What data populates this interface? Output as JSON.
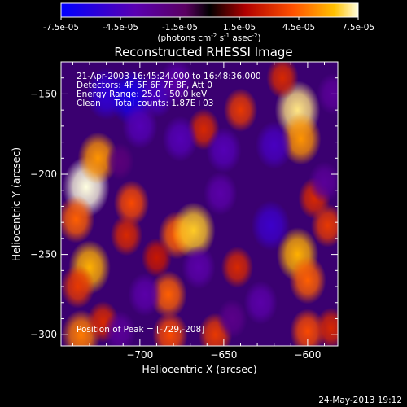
{
  "chart_data": {
    "type": "heatmap",
    "title": "Reconstructed RHESSI Image",
    "xlabel": "Heliocentric X (arcsec)",
    "ylabel": "Heliocentric Y (arcsec)",
    "xlim": [
      -747,
      -582
    ],
    "ylim": [
      -307,
      -130
    ],
    "x_ticks": [
      -700,
      -650,
      -600
    ],
    "y_ticks": [
      -150,
      -200,
      -250,
      -300
    ],
    "colorbar": {
      "min": -7.5e-05,
      "max": 7.5e-05,
      "ticks": [
        "-7.5e-05",
        "-4.5e-05",
        "-1.5e-05",
        "1.5e-05",
        "4.5e-05",
        "7.5e-05"
      ],
      "unit_label": "(photons cm",
      "unit_exp1": "-2",
      "unit_mid": " s",
      "unit_exp2": "-1",
      "unit_end": " asec",
      "unit_exp3": "-2",
      "unit_close": ")"
    },
    "annotations": [
      "21-Apr-2003 16:45:24.000 to 16:48:36.000",
      "Detectors: 4F 5F 6F 7F 8F, Att 0",
      "Energy Range: 25.0 - 50.0 keV",
      "Clean     Total counts: 1.87E+03"
    ],
    "peak_label": "Position of Peak = [-729,-208]",
    "timestamp": "24-May-2013 19:12",
    "blobs": [
      {
        "x": -732,
        "y": -208,
        "v": 7.5e-05
      },
      {
        "x": -725,
        "y": -190,
        "v": 5.5e-05
      },
      {
        "x": -738,
        "y": -228,
        "v": 4.5e-05
      },
      {
        "x": -730,
        "y": -258,
        "v": 6e-05
      },
      {
        "x": -737,
        "y": -270,
        "v": 3.5e-05
      },
      {
        "x": -735,
        "y": -300,
        "v": 5e-05
      },
      {
        "x": -722,
        "y": -292,
        "v": 3e-05
      },
      {
        "x": -705,
        "y": -218,
        "v": 4e-05
      },
      {
        "x": -708,
        "y": -238,
        "v": 3e-05
      },
      {
        "x": -678,
        "y": -238,
        "v": 4.5e-05
      },
      {
        "x": -668,
        "y": -235,
        "v": 6.5e-05
      },
      {
        "x": -683,
        "y": -275,
        "v": 4.5e-05
      },
      {
        "x": -690,
        "y": -252,
        "v": 2.5e-05
      },
      {
        "x": -682,
        "y": -300,
        "v": 4e-05
      },
      {
        "x": -655,
        "y": -300,
        "v": 3.5e-05
      },
      {
        "x": -642,
        "y": -258,
        "v": 3e-05
      },
      {
        "x": -640,
        "y": -160,
        "v": 3.5e-05
      },
      {
        "x": -662,
        "y": -172,
        "v": 3e-05
      },
      {
        "x": -606,
        "y": -160,
        "v": 7e-05
      },
      {
        "x": -604,
        "y": -178,
        "v": 5.5e-05
      },
      {
        "x": -606,
        "y": -250,
        "v": 6e-05
      },
      {
        "x": -600,
        "y": -266,
        "v": 4.5e-05
      },
      {
        "x": -596,
        "y": -215,
        "v": 3e-05
      },
      {
        "x": -588,
        "y": -232,
        "v": 3.5e-05
      },
      {
        "x": -600,
        "y": -298,
        "v": 4e-05
      },
      {
        "x": -586,
        "y": -296,
        "v": 3e-05
      },
      {
        "x": -615,
        "y": -140,
        "v": 3e-05
      },
      {
        "x": -720,
        "y": -150,
        "v": -5.5e-05
      },
      {
        "x": -705,
        "y": -152,
        "v": -6.5e-05
      },
      {
        "x": -690,
        "y": -150,
        "v": -4.5e-05
      },
      {
        "x": -700,
        "y": -170,
        "v": -4e-05
      },
      {
        "x": -678,
        "y": -142,
        "v": -3.5e-05
      },
      {
        "x": -676,
        "y": -178,
        "v": -4e-05
      },
      {
        "x": -650,
        "y": -185,
        "v": -4e-05
      },
      {
        "x": -652,
        "y": -212,
        "v": -3.5e-05
      },
      {
        "x": -620,
        "y": -182,
        "v": -4.5e-05
      },
      {
        "x": -622,
        "y": -232,
        "v": -5e-05
      },
      {
        "x": -628,
        "y": -280,
        "v": -3.5e-05
      },
      {
        "x": -665,
        "y": -258,
        "v": -3.5e-05
      },
      {
        "x": -697,
        "y": -275,
        "v": -3.5e-05
      },
      {
        "x": -712,
        "y": -298,
        "v": -3e-05
      },
      {
        "x": -585,
        "y": -150,
        "v": -3e-05
      },
      {
        "x": -590,
        "y": -205,
        "v": -3e-05
      },
      {
        "x": -645,
        "y": -290,
        "v": -2.5e-05
      },
      {
        "x": -712,
        "y": -192,
        "v": -2e-05
      }
    ]
  }
}
